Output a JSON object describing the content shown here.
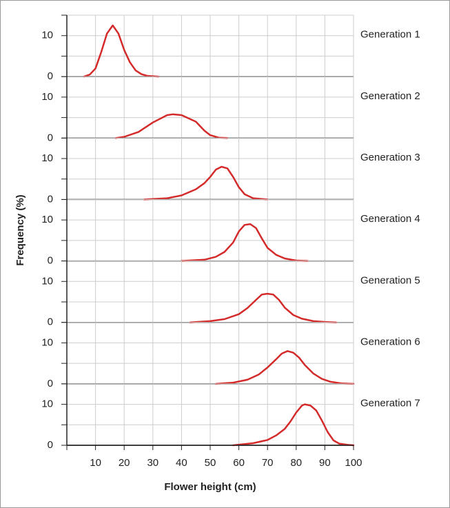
{
  "chart_data": {
    "type": "line",
    "xlabel": "Flower height (cm)",
    "ylabel": "Frequency (%)",
    "xlim": [
      0,
      100
    ],
    "xticks": [
      10,
      20,
      30,
      40,
      50,
      60,
      70,
      80,
      90,
      100
    ],
    "ylim": [
      0,
      15
    ],
    "yticks": [
      0,
      10
    ],
    "yminor": [
      5,
      15
    ],
    "grid": true,
    "series": [
      {
        "name": "Generation 1",
        "color": "#d42a2a",
        "x": [
          6,
          8,
          10,
          12,
          14,
          16,
          18,
          20,
          22,
          24,
          26,
          28,
          32
        ],
        "values": [
          0,
          0.5,
          2,
          6,
          10.5,
          12.5,
          10.5,
          6.5,
          3.5,
          1.5,
          0.6,
          0.2,
          0
        ]
      },
      {
        "name": "Generation 2",
        "color": "#d42a2a",
        "x": [
          17,
          20,
          25,
          30,
          35,
          37,
          40,
          45,
          48,
          50,
          53,
          56
        ],
        "values": [
          0,
          0.3,
          1.5,
          3.8,
          5.6,
          5.8,
          5.6,
          4,
          1.8,
          0.7,
          0.1,
          0
        ]
      },
      {
        "name": "Generation 3",
        "color": "#d42a2a",
        "x": [
          27,
          35,
          40,
          45,
          48,
          50,
          52,
          54,
          56,
          58,
          60,
          62,
          65,
          70
        ],
        "values": [
          0,
          0.3,
          1,
          2.5,
          4,
          5.5,
          7.3,
          8,
          7.6,
          5.5,
          3,
          1.3,
          0.3,
          0
        ]
      },
      {
        "name": "Generation 4",
        "color": "#d42a2a",
        "x": [
          40,
          48,
          52,
          55,
          58,
          60,
          62,
          64,
          66,
          68,
          70,
          73,
          76,
          80,
          84
        ],
        "values": [
          0,
          0.3,
          1,
          2.2,
          4.5,
          7.2,
          8.8,
          9,
          8,
          5.5,
          3.2,
          1.5,
          0.6,
          0.1,
          0
        ]
      },
      {
        "name": "Generation 5",
        "color": "#d42a2a",
        "x": [
          43,
          50,
          55,
          60,
          63,
          66,
          68,
          70,
          72,
          74,
          76,
          79,
          82,
          86,
          90,
          94
        ],
        "values": [
          0,
          0.3,
          0.8,
          2,
          3.5,
          5.5,
          6.8,
          7,
          6.8,
          5.5,
          3.6,
          1.8,
          0.9,
          0.3,
          0.1,
          0
        ]
      },
      {
        "name": "Generation 6",
        "color": "#d42a2a",
        "x": [
          52,
          58,
          63,
          67,
          70,
          73,
          75,
          77,
          79,
          81,
          83,
          86,
          89,
          92,
          96,
          100
        ],
        "values": [
          0,
          0.3,
          1,
          2.3,
          4,
          6,
          7.4,
          8,
          7.6,
          6.4,
          4.6,
          2.5,
          1.2,
          0.5,
          0.1,
          0
        ]
      },
      {
        "name": "Generation 7",
        "color": "#d42a2a",
        "x": [
          58,
          65,
          70,
          73,
          76,
          78,
          80,
          82,
          83,
          85,
          87,
          89,
          91,
          93,
          95,
          98,
          100
        ],
        "values": [
          0,
          0.5,
          1.3,
          2.4,
          4,
          5.8,
          8,
          9.7,
          10,
          9.7,
          8.5,
          6,
          3.2,
          1.2,
          0.4,
          0.1,
          0
        ]
      }
    ]
  }
}
